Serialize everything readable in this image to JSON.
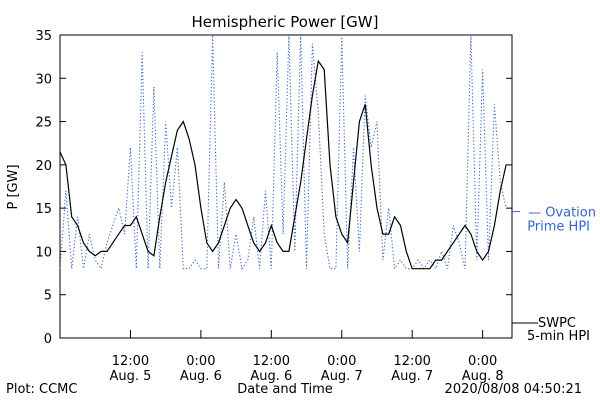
{
  "chart_data": {
    "type": "line",
    "title": "Hemispheric Power [GW]",
    "ylabel": "P [GW]",
    "xlabel": "Date and Time",
    "ylim": [
      0,
      35
    ],
    "yticks": [
      0,
      5,
      10,
      15,
      20,
      25,
      30,
      35
    ],
    "xlim": [
      "2020-08-05T00:00",
      "2020-08-08T05:00"
    ],
    "xticks": [
      {
        "x": "2020-08-05T12:00",
        "time": "12:00",
        "date": "Aug. 5"
      },
      {
        "x": "2020-08-06T00:00",
        "time": "0:00",
        "date": "Aug. 6"
      },
      {
        "x": "2020-08-06T12:00",
        "time": "12:00",
        "date": "Aug. 6"
      },
      {
        "x": "2020-08-07T00:00",
        "time": "0:00",
        "date": "Aug. 7"
      },
      {
        "x": "2020-08-07T12:00",
        "time": "12:00",
        "date": "Aug. 7"
      },
      {
        "x": "2020-08-08T00:00",
        "time": "0:00",
        "date": "Aug. 8"
      }
    ],
    "grid": false,
    "series": [
      {
        "name": "SWPC 5-min HPI",
        "style": "solid",
        "color": "#000000",
        "x": [
          "2020-08-05T00:00",
          "2020-08-05T01:00",
          "2020-08-05T02:00",
          "2020-08-05T03:00",
          "2020-08-05T04:00",
          "2020-08-05T05:00",
          "2020-08-05T06:00",
          "2020-08-05T07:00",
          "2020-08-05T08:00",
          "2020-08-05T09:00",
          "2020-08-05T10:00",
          "2020-08-05T11:00",
          "2020-08-05T12:00",
          "2020-08-05T13:00",
          "2020-08-05T14:00",
          "2020-08-05T15:00",
          "2020-08-05T16:00",
          "2020-08-05T17:00",
          "2020-08-05T18:00",
          "2020-08-05T19:00",
          "2020-08-05T20:00",
          "2020-08-05T21:00",
          "2020-08-05T22:00",
          "2020-08-05T23:00",
          "2020-08-06T00:00",
          "2020-08-06T01:00",
          "2020-08-06T02:00",
          "2020-08-06T03:00",
          "2020-08-06T04:00",
          "2020-08-06T05:00",
          "2020-08-06T06:00",
          "2020-08-06T07:00",
          "2020-08-06T08:00",
          "2020-08-06T09:00",
          "2020-08-06T10:00",
          "2020-08-06T11:00",
          "2020-08-06T12:00",
          "2020-08-06T13:00",
          "2020-08-06T14:00",
          "2020-08-06T15:00",
          "2020-08-06T16:00",
          "2020-08-06T17:00",
          "2020-08-06T18:00",
          "2020-08-06T19:00",
          "2020-08-06T20:00",
          "2020-08-06T21:00",
          "2020-08-06T22:00",
          "2020-08-06T23:00",
          "2020-08-07T00:00",
          "2020-08-07T01:00",
          "2020-08-07T02:00",
          "2020-08-07T03:00",
          "2020-08-07T04:00",
          "2020-08-07T05:00",
          "2020-08-07T06:00",
          "2020-08-07T07:00",
          "2020-08-07T08:00",
          "2020-08-07T09:00",
          "2020-08-07T10:00",
          "2020-08-07T11:00",
          "2020-08-07T12:00",
          "2020-08-07T13:00",
          "2020-08-07T14:00",
          "2020-08-07T15:00",
          "2020-08-07T16:00",
          "2020-08-07T17:00",
          "2020-08-07T18:00",
          "2020-08-07T19:00",
          "2020-08-07T20:00",
          "2020-08-07T21:00",
          "2020-08-07T22:00",
          "2020-08-07T23:00",
          "2020-08-08T00:00",
          "2020-08-08T01:00",
          "2020-08-08T02:00",
          "2020-08-08T03:00",
          "2020-08-08T04:00"
        ],
        "y": [
          21.5,
          20,
          14,
          13,
          11,
          10,
          9.5,
          10,
          10,
          11,
          12,
          13,
          13,
          14,
          12,
          10,
          9.5,
          14,
          18,
          21,
          24,
          25,
          23,
          20,
          15,
          11,
          10,
          11,
          13,
          15,
          16,
          15,
          13,
          11,
          10,
          11,
          13,
          11,
          10,
          10,
          14,
          18,
          23,
          28,
          32,
          31,
          20,
          14,
          12,
          11,
          18,
          25,
          27,
          20,
          15,
          12,
          12,
          14,
          13,
          10,
          8,
          8,
          8,
          8,
          9,
          9,
          10,
          11,
          12,
          13,
          12,
          10,
          9,
          10,
          13,
          17,
          20
        ]
      },
      {
        "name": "Ovation Prime HPI",
        "style": "dotted",
        "color": "#3366cc",
        "x": [
          "2020-08-05T00:00",
          "2020-08-05T01:00",
          "2020-08-05T02:00",
          "2020-08-05T03:00",
          "2020-08-05T04:00",
          "2020-08-05T05:00",
          "2020-08-05T06:00",
          "2020-08-05T07:00",
          "2020-08-05T08:00",
          "2020-08-05T09:00",
          "2020-08-05T10:00",
          "2020-08-05T11:00",
          "2020-08-05T12:00",
          "2020-08-05T13:00",
          "2020-08-05T14:00",
          "2020-08-05T15:00",
          "2020-08-05T16:00",
          "2020-08-05T17:00",
          "2020-08-05T18:00",
          "2020-08-05T19:00",
          "2020-08-05T20:00",
          "2020-08-05T21:00",
          "2020-08-05T22:00",
          "2020-08-05T23:00",
          "2020-08-06T00:00",
          "2020-08-06T01:00",
          "2020-08-06T02:00",
          "2020-08-06T03:00",
          "2020-08-06T04:00",
          "2020-08-06T05:00",
          "2020-08-06T06:00",
          "2020-08-06T07:00",
          "2020-08-06T08:00",
          "2020-08-06T09:00",
          "2020-08-06T10:00",
          "2020-08-06T11:00",
          "2020-08-06T12:00",
          "2020-08-06T13:00",
          "2020-08-06T14:00",
          "2020-08-06T15:00",
          "2020-08-06T16:00",
          "2020-08-06T17:00",
          "2020-08-06T18:00",
          "2020-08-06T19:00",
          "2020-08-06T20:00",
          "2020-08-06T21:00",
          "2020-08-06T22:00",
          "2020-08-06T23:00",
          "2020-08-07T00:00",
          "2020-08-07T01:00",
          "2020-08-07T02:00",
          "2020-08-07T03:00",
          "2020-08-07T04:00",
          "2020-08-07T05:00",
          "2020-08-07T06:00",
          "2020-08-07T07:00",
          "2020-08-07T08:00",
          "2020-08-07T09:00",
          "2020-08-07T10:00",
          "2020-08-07T11:00",
          "2020-08-07T12:00",
          "2020-08-07T13:00",
          "2020-08-07T14:00",
          "2020-08-07T15:00",
          "2020-08-07T16:00",
          "2020-08-07T17:00",
          "2020-08-07T18:00",
          "2020-08-07T19:00",
          "2020-08-07T20:00",
          "2020-08-07T21:00",
          "2020-08-07T22:00",
          "2020-08-07T23:00",
          "2020-08-08T00:00",
          "2020-08-08T01:00",
          "2020-08-08T02:00",
          "2020-08-08T03:00",
          "2020-08-08T04:00"
        ],
        "y": [
          8,
          17,
          8,
          14,
          8,
          12,
          9,
          8,
          11,
          13,
          15,
          12,
          22,
          8,
          33,
          8,
          29,
          8,
          25,
          15,
          22,
          8,
          8,
          9,
          8,
          8,
          35,
          8,
          18,
          8,
          12,
          8,
          9,
          14,
          8,
          17,
          8,
          33,
          12,
          35,
          10,
          35,
          8,
          34,
          26,
          12,
          8,
          8,
          35,
          8,
          22,
          10,
          28,
          22,
          25,
          9,
          15,
          8,
          9,
          8,
          8,
          9,
          8,
          9,
          8,
          10,
          8,
          13,
          11,
          8,
          35,
          9,
          31,
          9,
          27,
          18,
          15
        ]
      }
    ],
    "legend": [
      {
        "label": [
          "— Ovation",
          "Prime HPI"
        ],
        "color": "#3366cc",
        "style": "dotted"
      },
      {
        "label": [
          "SWPC",
          "5-min HPI"
        ],
        "color": "#000000",
        "style": "solid"
      }
    ],
    "footer": {
      "left": "Plot: CCMC",
      "right": "2020/08/08 04:50:21"
    }
  }
}
